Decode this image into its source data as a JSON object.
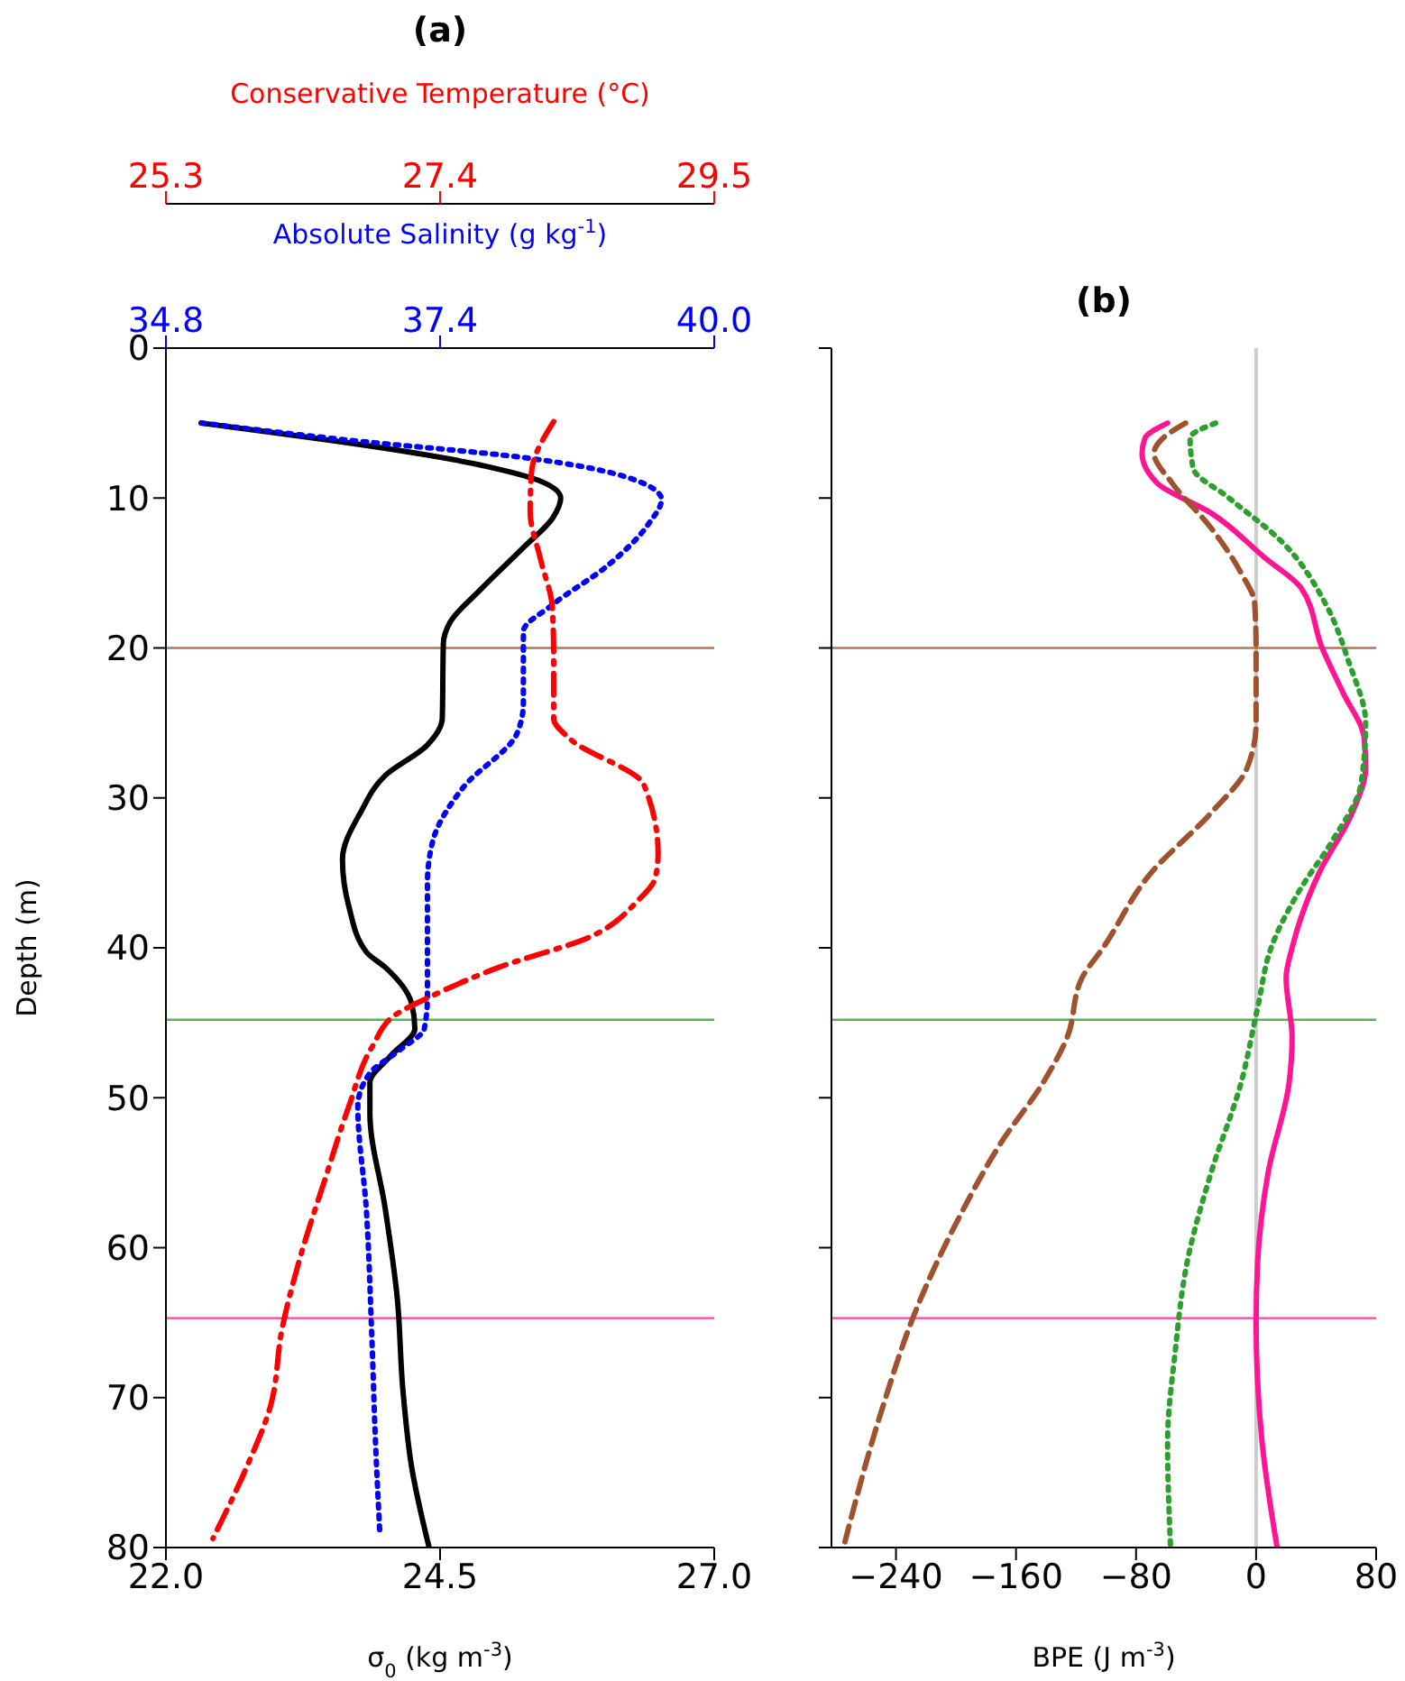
{
  "chart_data": [
    {
      "type": "line",
      "title": "(a)",
      "xlabel": "σ$_{0}$ (kg m$^{-3}$)",
      "ylabel": "Depth (m)",
      "x2label": "Absolute Salinity (g kg$^{-1}$)",
      "orientation": "horizontal",
      "marker": "none",
      "xlim": [
        22,
        27
      ],
      "xticks": [
        {
          "value": 22,
          "label": "22.0"
        },
        24.5,
        {
          "value": 27,
          "label": "27.0"
        }
      ],
      "x2lim": [
        34.8,
        40
      ],
      "x2ticks": [
        34.8,
        37.4,
        {
          "value": 40,
          "label": "40.0"
        }
      ],
      "ylim": [
        80,
        0
      ],
      "yticks": [
        0,
        10,
        20,
        30,
        40,
        50,
        60,
        70,
        80
      ],
      "ref_lines": [
        {
          "axis": "y",
          "value": 20,
          "color": "#a0522d"
        },
        {
          "axis": "y",
          "value": 44.8,
          "color": "#2ca02c"
        },
        {
          "axis": "y",
          "value": 64.7,
          "color": "#ff1493"
        }
      ],
      "series": [
        {
          "color": "#000000",
          "line_style": "solid",
          "values": [
            22.32,
            24.93,
            25.39,
            25.6,
            25.53,
            25.26,
            24.87,
            24.59,
            24.53,
            24.52,
            24.38,
            24.0,
            23.78,
            23.61,
            23.67,
            23.83,
            24.0,
            24.24,
            24.27,
            24.05,
            23.86,
            23.86,
            24.0,
            24.11,
            24.16,
            24.24,
            24.4
          ],
          "x": [
            5,
            7.9,
            8.8,
            10,
            11.3,
            13.3,
            16.1,
            18.3,
            19.7,
            24.7,
            26.5,
            28.5,
            30.9,
            34.1,
            37.3,
            40.3,
            41.3,
            43.7,
            45.4,
            47.2,
            49,
            51,
            57.4,
            63.4,
            69.4,
            74.6,
            80
          ]
        },
        {
          "color": "#0000ff",
          "line_style": "dotted",
          "axis": "x2",
          "values": [
            35.14,
            36.48,
            38.19,
            39.21,
            39.5,
            39.38,
            38.99,
            38.47,
            38.19,
            38.19,
            38.13,
            37.62,
            37.33,
            37.28,
            37.28,
            37.28,
            37.25,
            37.02,
            36.73,
            36.62,
            36.7,
            36.75,
            36.79,
            36.83
          ],
          "x": [
            5,
            6.1,
            7.3,
            8.7,
            10.1,
            11.7,
            14.5,
            17.1,
            18.9,
            23.7,
            25.7,
            29.3,
            32.9,
            35.7,
            39.3,
            43.3,
            45.4,
            46.8,
            48.4,
            50.6,
            57.4,
            65.4,
            73.4,
            79.2
          ]
        }
      ]
    },
    {
      "type": "line",
      "x2label": "Conservative Temperature (°C)",
      "orientation": "horizontal",
      "marker": "none",
      "tick_labels": "x",
      "x2lim": [
        25.3,
        29.5
      ],
      "x2ticks": [
        25.3,
        27.4,
        29.5
      ],
      "ylim": [
        80,
        0
      ],
      "series": [
        {
          "color": "#ff0000",
          "line_style": "dashdot",
          "axis": "x2",
          "values": [
            28.27,
            28.1,
            28.09,
            28.17,
            28.26,
            28.27,
            28.27,
            28.4,
            28.96,
            29.07,
            29.05,
            28.91,
            28.54,
            27.85,
            27.34,
            27.07,
            26.88,
            26.7,
            26.52,
            26.33,
            26.19,
            26.1,
            25.92,
            25.66
          ],
          "x": [
            4.9,
            8.3,
            10.9,
            14.1,
            17.3,
            20.5,
            24.7,
            26.1,
            29.1,
            33.7,
            35.3,
            36.9,
            39.3,
            41.3,
            43.2,
            44.4,
            46.6,
            50.6,
            55.4,
            60.6,
            65.4,
            70.6,
            74.6,
            79.4
          ]
        }
      ]
    },
    {
      "type": "line",
      "title": "(b)",
      "xlabel": "BPE (J m$^{-3}$)",
      "orientation": "horizontal",
      "marker": "none",
      "tick_labels": "x",
      "xlim": [
        -283,
        80
      ],
      "xticks": [
        {
          "value": -240,
          "label": "−240"
        },
        {
          "value": -160,
          "label": "−160"
        },
        {
          "value": -80,
          "label": "−80"
        },
        0,
        80
      ],
      "ylim": [
        80,
        0
      ],
      "yticks": [
        0,
        10,
        20,
        30,
        40,
        50,
        60,
        70,
        80
      ],
      "ref_lines": [
        {
          "axis": "x",
          "value": 0,
          "color": "#cccccc"
        },
        {
          "axis": "y",
          "value": 20,
          "color": "#a0522d"
        },
        {
          "axis": "y",
          "value": 44.8,
          "color": "#2ca02c"
        },
        {
          "axis": "y",
          "value": 64.7,
          "color": "#ff1493"
        }
      ],
      "series": [
        {
          "color": "#ff1493",
          "line_style": "solid",
          "values": [
            -59,
            -74,
            -76,
            -66,
            -30,
            6,
            30,
            44,
            58,
            72,
            73,
            64,
            42,
            24,
            20,
            24,
            22,
            8,
            1,
            0,
            4,
            14
          ],
          "x": [
            5,
            6,
            7,
            9,
            11,
            14,
            16,
            20,
            23,
            26,
            28,
            31,
            35,
            40,
            42,
            46,
            49,
            55,
            61,
            65,
            73,
            80
          ]
        },
        {
          "color": "#a0522d",
          "line_style": "dashed",
          "values": [
            -47,
            -62,
            -68,
            -56,
            -30,
            -10,
            -1,
            0,
            0,
            -6,
            -30,
            -70,
            -102,
            -116,
            -126,
            -142,
            -170,
            -198,
            -226,
            -250,
            -275
          ],
          "x": [
            5,
            6,
            7,
            9,
            12,
            15,
            17,
            20,
            25,
            28,
            31,
            35,
            40,
            42,
            46,
            49,
            53,
            58,
            64,
            71,
            80
          ]
        },
        {
          "color": "#2ca02c",
          "line_style": "dotted",
          "values": [
            -27,
            -44,
            -42,
            -18,
            18,
            46,
            62,
            73,
            70,
            50,
            30,
            10,
            1,
            -10,
            -30,
            -46,
            -54,
            -59,
            -57
          ],
          "x": [
            5,
            6,
            8,
            10,
            13,
            17,
            21,
            25,
            29,
            33,
            36,
            40,
            44,
            49,
            55,
            61,
            67,
            73,
            80
          ]
        }
      ]
    }
  ]
}
